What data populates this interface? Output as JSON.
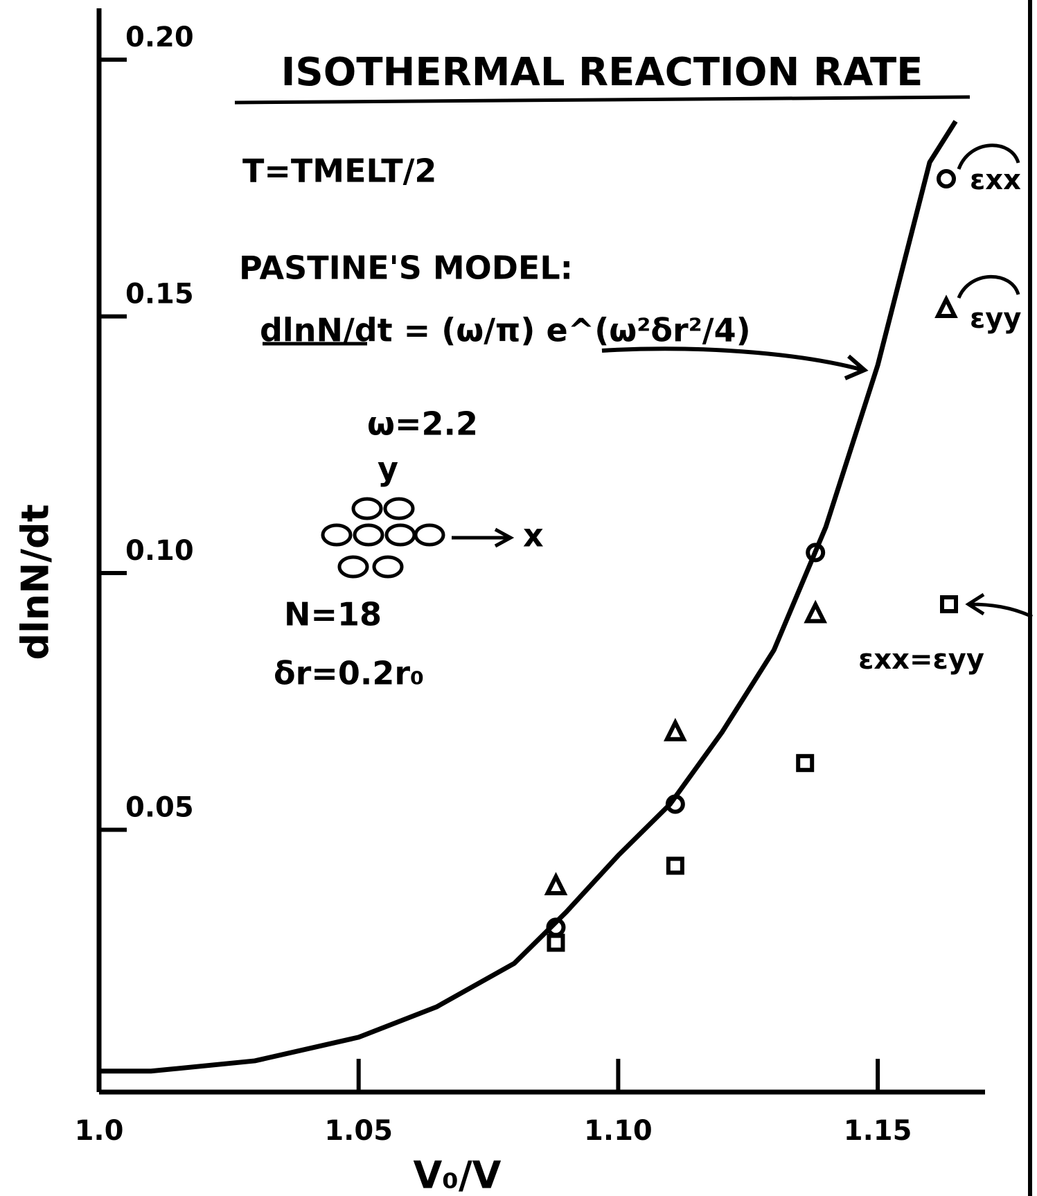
{
  "chart_data": {
    "type": "scatter",
    "title": "ISOTHERMAL REACTION RATE",
    "x_label": "V₀/V",
    "y_label": "dlnN/dt",
    "annotations": [
      "T=TMELT/2",
      "PASTINE'S MODEL:",
      "dlnN/dt = (ω/π) e^(ω²δr²/4)",
      "ω=2.2",
      "y",
      "x",
      "N=18",
      "δr=0.2r₀"
    ],
    "xlim": [
      1.0,
      1.17
    ],
    "ylim": [
      0,
      0.21
    ],
    "xticks": [
      {
        "value": 1.0,
        "label": "1.0"
      },
      1.05,
      {
        "value": 1.1,
        "label": "1.10"
      },
      1.15
    ],
    "yticks": [
      0.05,
      {
        "value": 0.1,
        "label": "0.10"
      },
      0.15,
      {
        "value": 0.2,
        "label": "0.20"
      }
    ],
    "curve": {
      "type": "line",
      "color": "#000000",
      "x": [
        1.0,
        1.01,
        1.03,
        1.05,
        1.065,
        1.08,
        1.09,
        1.1,
        1.11,
        1.12,
        1.13,
        1.14,
        1.15,
        1.16,
        1.165
      ],
      "values": [
        0.003,
        0.003,
        0.005,
        0.0096,
        0.0155,
        0.024,
        0.034,
        0.045,
        0.055,
        0.069,
        0.085,
        0.109,
        0.1405,
        0.18,
        0.188
      ]
    },
    "series": [
      {
        "name": "εxx",
        "marker": "circle",
        "color": "#000000",
        "x": [
          1.088,
          1.111,
          1.138
        ],
        "values": [
          0.031,
          0.055,
          0.104
        ]
      },
      {
        "name": "εyy",
        "marker": "triangle",
        "color": "#000000",
        "x": [
          1.088,
          1.111,
          1.138
        ],
        "values": [
          0.039,
          0.069,
          0.092
        ]
      },
      {
        "name": "εxx=εyy",
        "marker": "square",
        "color": "#000000",
        "x": [
          1.088,
          1.111,
          1.136
        ],
        "values": [
          0.028,
          0.043,
          0.063
        ]
      }
    ]
  }
}
